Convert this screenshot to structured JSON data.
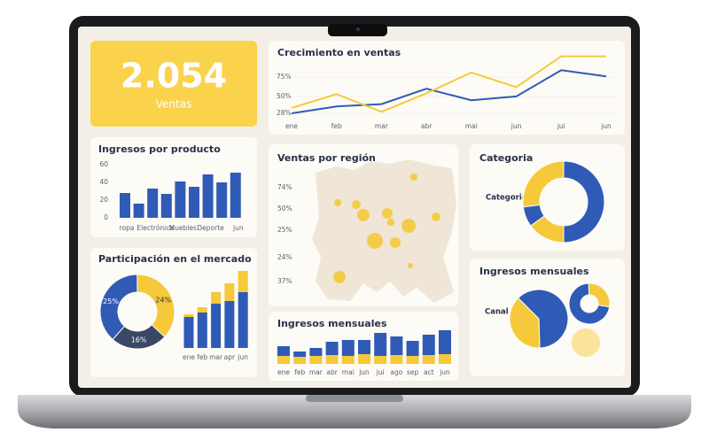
{
  "kpi": {
    "value": "2.054",
    "label": "Ventas"
  },
  "chart_data": [
    {
      "type": "line",
      "title": "Crecimiento en ventas",
      "categories": [
        "ene",
        "feb",
        "mar",
        "abr",
        "mai",
        "jun",
        "jui",
        "jun"
      ],
      "ylim": [
        20,
        105
      ],
      "yticks": [
        {
          "value": 75,
          "label": "75%"
        },
        {
          "value": 50,
          "label": "50%"
        },
        {
          "value": 28,
          "label": "28%"
        }
      ],
      "series": [
        {
          "color": "#2f5bb7",
          "values": [
            28,
            37,
            40,
            60,
            45,
            50,
            84,
            76
          ]
        },
        {
          "color": "#f5c93a",
          "values": [
            35,
            53,
            30,
            54,
            81,
            62,
            102,
            102
          ]
        }
      ]
    },
    {
      "type": "bar",
      "title": "Ingresos por producto",
      "categories": [
        "ropa",
        null,
        "Electrónica",
        null,
        "Muebles",
        null,
        "Deporte",
        null,
        "jun"
      ],
      "values": [
        28,
        16,
        33,
        27,
        41,
        35,
        49,
        40,
        51
      ],
      "color": "#2f5bb7",
      "ylim": [
        0,
        60
      ],
      "yticks": [
        0,
        20,
        40,
        60
      ]
    },
    {
      "type": "pie",
      "title": "Participación en el mercado",
      "donut": true,
      "values": [
        25,
        24,
        16
      ],
      "value_labels": [
        "25%",
        "24%",
        "16%"
      ],
      "colors": [
        "#2f5bb7",
        "#f5c93a",
        "#3b4766"
      ]
    },
    {
      "type": "stacked_bar",
      "categories": [
        "ene",
        "feb",
        "mar",
        "apr",
        "jun"
      ],
      "series": [
        {
          "color": "#2f5bb7",
          "values": [
            35,
            40,
            50,
            53,
            63
          ]
        },
        {
          "color": "#f5c93a",
          "values": [
            3,
            6,
            13,
            20,
            24
          ]
        }
      ]
    },
    {
      "type": "bubble_map",
      "title": "Ventas por región",
      "labels": [
        "74%",
        "50%",
        "25%",
        "24%",
        "37%"
      ],
      "sizes": [
        4,
        5,
        7,
        6,
        4,
        8,
        9,
        6,
        4,
        5,
        3,
        7
      ],
      "color": "#f5c93a"
    },
    {
      "type": "stacked_bar",
      "title": "Ingresos mensuales",
      "categories": [
        "ene",
        "feb",
        "mar",
        "abr",
        "mai",
        "jun",
        "jui",
        "ago",
        "sep",
        "act",
        "jun"
      ],
      "series": [
        {
          "color": "#f5c93a",
          "values": [
            9,
            8,
            9,
            10,
            9,
            11,
            9,
            10,
            9,
            10,
            11
          ]
        },
        {
          "color": "#2f5bb7",
          "values": [
            11,
            6,
            9,
            15,
            18,
            16,
            26,
            21,
            17,
            23,
            27
          ]
        }
      ]
    },
    {
      "type": "pie",
      "title": "Categoria",
      "label": "Categoria",
      "donut": true,
      "values": [
        50,
        15,
        8,
        27
      ],
      "colors": [
        "#2f5bb7",
        "#f5c93a",
        "#2f5bb7",
        "#f5c93a"
      ]
    },
    {
      "type": "pie_group",
      "title": "Ingresos mensuales",
      "label": "Canal",
      "pies": [
        {
          "values": [
            62,
            38
          ],
          "colors": [
            "#2f5bb7",
            "#f5c93a"
          ],
          "donut": false
        },
        {
          "values": [
            72,
            28
          ],
          "colors": [
            "#2f5bb7",
            "#f5c93a"
          ],
          "donut": true
        },
        {
          "values": [
            100
          ],
          "colors": [
            "#fbe39a"
          ],
          "donut": false
        }
      ]
    }
  ]
}
